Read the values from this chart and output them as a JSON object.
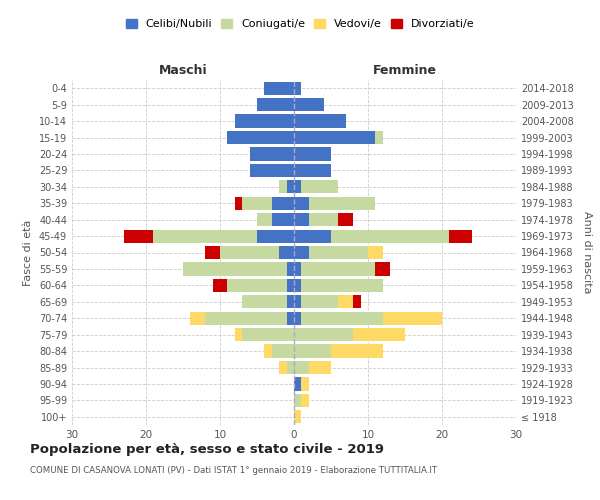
{
  "age_groups": [
    "100+",
    "95-99",
    "90-94",
    "85-89",
    "80-84",
    "75-79",
    "70-74",
    "65-69",
    "60-64",
    "55-59",
    "50-54",
    "45-49",
    "40-44",
    "35-39",
    "30-34",
    "25-29",
    "20-24",
    "15-19",
    "10-14",
    "5-9",
    "0-4"
  ],
  "birth_years": [
    "≤ 1918",
    "1919-1923",
    "1924-1928",
    "1929-1933",
    "1934-1938",
    "1939-1943",
    "1944-1948",
    "1949-1953",
    "1954-1958",
    "1959-1963",
    "1964-1968",
    "1969-1973",
    "1974-1978",
    "1979-1983",
    "1984-1988",
    "1989-1993",
    "1994-1998",
    "1999-2003",
    "2004-2008",
    "2009-2013",
    "2014-2018"
  ],
  "colors": {
    "celibi": "#4472C4",
    "coniugati": "#C5D9A0",
    "vedovi": "#FFD966",
    "divorziati": "#CC0000"
  },
  "maschi": {
    "celibi": [
      0,
      0,
      0,
      0,
      0,
      0,
      1,
      1,
      1,
      1,
      2,
      5,
      3,
      3,
      1,
      6,
      6,
      9,
      8,
      5,
      4
    ],
    "coniugati": [
      0,
      0,
      0,
      1,
      3,
      7,
      11,
      6,
      8,
      14,
      8,
      14,
      2,
      4,
      1,
      0,
      0,
      0,
      0,
      0,
      0
    ],
    "vedovi": [
      0,
      0,
      0,
      1,
      1,
      1,
      2,
      0,
      0,
      0,
      0,
      0,
      0,
      0,
      0,
      0,
      0,
      0,
      0,
      0,
      0
    ],
    "divorziati": [
      0,
      0,
      0,
      0,
      0,
      0,
      0,
      0,
      2,
      0,
      2,
      4,
      0,
      1,
      0,
      0,
      0,
      0,
      0,
      0,
      0
    ]
  },
  "femmine": {
    "celibi": [
      0,
      0,
      1,
      0,
      0,
      0,
      1,
      1,
      1,
      1,
      2,
      5,
      2,
      2,
      1,
      5,
      5,
      11,
      7,
      4,
      1
    ],
    "coniugati": [
      0,
      1,
      0,
      2,
      5,
      8,
      11,
      5,
      11,
      10,
      8,
      16,
      4,
      9,
      5,
      0,
      0,
      1,
      0,
      0,
      0
    ],
    "vedovi": [
      1,
      1,
      1,
      3,
      7,
      7,
      8,
      2,
      0,
      0,
      2,
      0,
      0,
      0,
      0,
      0,
      0,
      0,
      0,
      0,
      0
    ],
    "divorziati": [
      0,
      0,
      0,
      0,
      0,
      0,
      0,
      1,
      0,
      2,
      0,
      3,
      2,
      0,
      0,
      0,
      0,
      0,
      0,
      0,
      0
    ]
  },
  "title": "Popolazione per età, sesso e stato civile - 2019",
  "subtitle": "COMUNE DI CASANOVA LONATI (PV) - Dati ISTAT 1° gennaio 2019 - Elaborazione TUTTITALIA.IT",
  "ylabel_left": "Fasce di età",
  "ylabel_right": "Anni di nascita",
  "xlabel_left": "Maschi",
  "xlabel_right": "Femmine",
  "xlim": 30,
  "legend_labels": [
    "Celibi/Nubili",
    "Coniugati/e",
    "Vedovi/e",
    "Divorziati/e"
  ],
  "bg_color": "#FFFFFF",
  "grid_color": "#CCCCCC"
}
